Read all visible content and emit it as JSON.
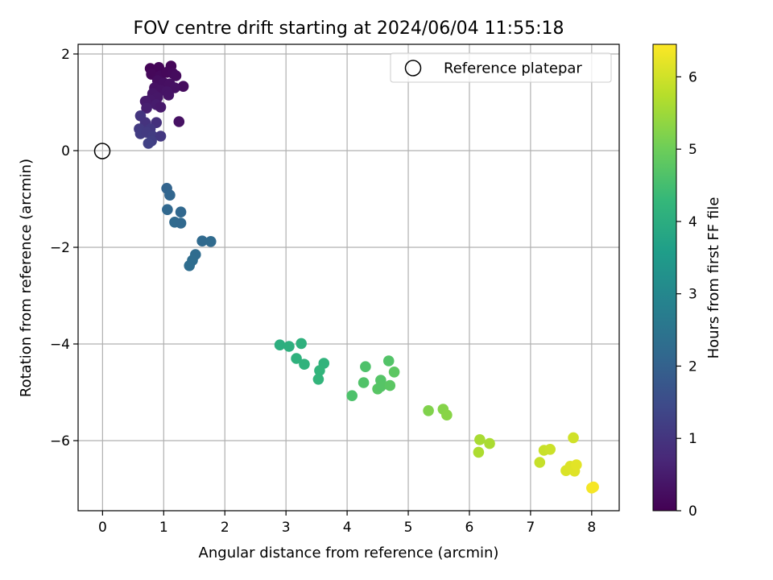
{
  "chart_data": {
    "type": "scatter",
    "title": "FOV centre drift starting at 2024/06/04 11:55:18",
    "xlabel": "Angular distance from reference (arcmin)",
    "ylabel": "Rotation from reference (arcmin)",
    "xlim": [
      -0.4,
      8.45
    ],
    "ylim": [
      -7.45,
      2.2
    ],
    "xticks": [
      0,
      1,
      2,
      3,
      4,
      5,
      6,
      7,
      8
    ],
    "yticks": [
      2,
      0,
      -2,
      -4,
      -6
    ],
    "xtick_labels": [
      "0",
      "1",
      "2",
      "3",
      "4",
      "5",
      "6",
      "7",
      "8"
    ],
    "ytick_labels": [
      "2",
      "0",
      "−2",
      "−4",
      "−6"
    ],
    "grid": true,
    "legend": {
      "label": "Reference platepar",
      "position": "upper-right",
      "marker": "open-circle"
    },
    "reference_point": {
      "x": 0,
      "y": 0
    },
    "colorbar": {
      "label": "Hours from first FF file",
      "colormap": "viridis",
      "range": [
        0,
        6.45
      ],
      "ticks": [
        0,
        1,
        2,
        3,
        4,
        5,
        6
      ],
      "tick_labels": [
        "0",
        "1",
        "2",
        "3",
        "4",
        "5",
        "6"
      ],
      "colors": [
        "#440154",
        "#482878",
        "#3e4989",
        "#31688e",
        "#26828e",
        "#1f9e89",
        "#35b779",
        "#6ece58",
        "#b5de2b",
        "#fde725"
      ]
    },
    "points": [
      {
        "x": 0.78,
        "y": 1.7,
        "t": 0.05
      },
      {
        "x": 0.92,
        "y": 1.72,
        "t": 0.08
      },
      {
        "x": 1.12,
        "y": 1.75,
        "t": 0.1
      },
      {
        "x": 0.8,
        "y": 1.58,
        "t": 0.12
      },
      {
        "x": 0.95,
        "y": 1.55,
        "t": 0.15
      },
      {
        "x": 1.05,
        "y": 1.62,
        "t": 0.12
      },
      {
        "x": 1.15,
        "y": 1.6,
        "t": 0.15
      },
      {
        "x": 1.2,
        "y": 1.55,
        "t": 0.18
      },
      {
        "x": 1.32,
        "y": 1.33,
        "t": 0.2
      },
      {
        "x": 0.9,
        "y": 1.45,
        "t": 0.22
      },
      {
        "x": 1.0,
        "y": 1.4,
        "t": 0.25
      },
      {
        "x": 1.1,
        "y": 1.38,
        "t": 0.28
      },
      {
        "x": 1.18,
        "y": 1.3,
        "t": 0.3
      },
      {
        "x": 0.85,
        "y": 1.3,
        "t": 0.3
      },
      {
        "x": 0.95,
        "y": 1.25,
        "t": 0.32
      },
      {
        "x": 1.05,
        "y": 1.22,
        "t": 0.35
      },
      {
        "x": 0.82,
        "y": 1.18,
        "t": 0.38
      },
      {
        "x": 1.08,
        "y": 1.15,
        "t": 0.35
      },
      {
        "x": 0.9,
        "y": 1.1,
        "t": 0.4
      },
      {
        "x": 0.78,
        "y": 1.05,
        "t": 0.42
      },
      {
        "x": 0.7,
        "y": 1.02,
        "t": 0.48
      },
      {
        "x": 0.88,
        "y": 0.95,
        "t": 0.5
      },
      {
        "x": 0.95,
        "y": 0.9,
        "t": 0.45
      },
      {
        "x": 0.72,
        "y": 0.88,
        "t": 0.55
      },
      {
        "x": 1.25,
        "y": 0.6,
        "t": 0.3
      },
      {
        "x": 0.62,
        "y": 0.72,
        "t": 1.0
      },
      {
        "x": 0.7,
        "y": 0.58,
        "t": 0.95
      },
      {
        "x": 0.88,
        "y": 0.58,
        "t": 0.9
      },
      {
        "x": 0.6,
        "y": 0.45,
        "t": 1.1
      },
      {
        "x": 0.78,
        "y": 0.45,
        "t": 1.05
      },
      {
        "x": 0.62,
        "y": 0.35,
        "t": 1.15
      },
      {
        "x": 0.72,
        "y": 0.38,
        "t": 1.1
      },
      {
        "x": 0.82,
        "y": 0.3,
        "t": 1.15
      },
      {
        "x": 0.95,
        "y": 0.3,
        "t": 1.05
      },
      {
        "x": 0.8,
        "y": 0.2,
        "t": 1.2
      },
      {
        "x": 0.75,
        "y": 0.15,
        "t": 1.25
      },
      {
        "x": 1.05,
        "y": -0.78,
        "t": 2.05
      },
      {
        "x": 1.1,
        "y": -0.92,
        "t": 2.1
      },
      {
        "x": 1.06,
        "y": -1.22,
        "t": 2.15
      },
      {
        "x": 1.28,
        "y": -1.27,
        "t": 2.15
      },
      {
        "x": 1.18,
        "y": -1.48,
        "t": 2.2
      },
      {
        "x": 1.28,
        "y": -1.5,
        "t": 2.18
      },
      {
        "x": 1.63,
        "y": -1.87,
        "t": 2.2
      },
      {
        "x": 1.77,
        "y": -1.88,
        "t": 2.22
      },
      {
        "x": 1.52,
        "y": -2.15,
        "t": 2.25
      },
      {
        "x": 1.47,
        "y": -2.27,
        "t": 2.28
      },
      {
        "x": 1.42,
        "y": -2.38,
        "t": 2.3
      },
      {
        "x": 2.9,
        "y": -4.02,
        "t": 4.05
      },
      {
        "x": 3.05,
        "y": -4.05,
        "t": 4.08
      },
      {
        "x": 3.25,
        "y": -3.99,
        "t": 4.1
      },
      {
        "x": 3.17,
        "y": -4.3,
        "t": 4.12
      },
      {
        "x": 3.3,
        "y": -4.42,
        "t": 4.15
      },
      {
        "x": 3.62,
        "y": -4.4,
        "t": 4.18
      },
      {
        "x": 3.55,
        "y": -4.55,
        "t": 4.2
      },
      {
        "x": 3.53,
        "y": -4.73,
        "t": 4.22
      },
      {
        "x": 4.08,
        "y": -5.07,
        "t": 4.6
      },
      {
        "x": 4.27,
        "y": -4.8,
        "t": 4.65
      },
      {
        "x": 4.3,
        "y": -4.47,
        "t": 4.62
      },
      {
        "x": 4.55,
        "y": -4.75,
        "t": 4.7
      },
      {
        "x": 4.5,
        "y": -4.93,
        "t": 4.75
      },
      {
        "x": 4.55,
        "y": -4.88,
        "t": 4.72
      },
      {
        "x": 4.68,
        "y": -4.35,
        "t": 4.68
      },
      {
        "x": 4.7,
        "y": -4.86,
        "t": 4.78
      },
      {
        "x": 4.77,
        "y": -4.58,
        "t": 4.8
      },
      {
        "x": 5.33,
        "y": -5.38,
        "t": 5.2
      },
      {
        "x": 5.57,
        "y": -5.35,
        "t": 5.25
      },
      {
        "x": 5.63,
        "y": -5.47,
        "t": 5.28
      },
      {
        "x": 6.17,
        "y": -5.98,
        "t": 5.6
      },
      {
        "x": 6.33,
        "y": -6.06,
        "t": 5.62
      },
      {
        "x": 6.15,
        "y": -6.24,
        "t": 5.65
      },
      {
        "x": 7.15,
        "y": -6.45,
        "t": 5.9
      },
      {
        "x": 7.22,
        "y": -6.2,
        "t": 5.92
      },
      {
        "x": 7.32,
        "y": -6.18,
        "t": 5.95
      },
      {
        "x": 7.7,
        "y": -5.94,
        "t": 6.0
      },
      {
        "x": 7.58,
        "y": -6.62,
        "t": 6.1
      },
      {
        "x": 7.65,
        "y": -6.53,
        "t": 6.12
      },
      {
        "x": 7.72,
        "y": -6.63,
        "t": 6.15
      },
      {
        "x": 7.75,
        "y": -6.5,
        "t": 6.18
      },
      {
        "x": 8.0,
        "y": -6.98,
        "t": 6.35
      },
      {
        "x": 8.03,
        "y": -6.96,
        "t": 6.38
      }
    ]
  }
}
